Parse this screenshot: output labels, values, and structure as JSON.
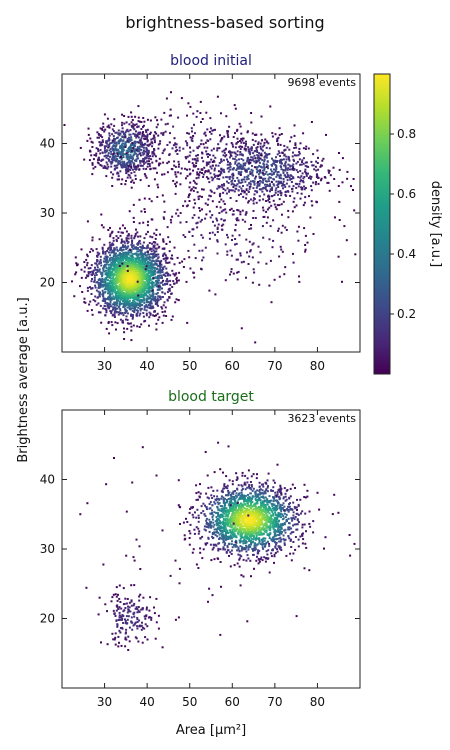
{
  "figure": {
    "title": "brightness-based sorting",
    "xlabel": "Area [µm²]",
    "ylabel": "Brightness average [a.u.]"
  },
  "colorbar": {
    "label": "density [a.u.]",
    "range": [
      0,
      1
    ],
    "ticks": [
      0.2,
      0.4,
      0.6,
      0.8
    ],
    "tick_labels": [
      "0.2",
      "0.4",
      "0.6",
      "0.8"
    ],
    "colormap": "viridis"
  },
  "colors": {
    "title_initial": "#1f1f7a",
    "title_target": "#1a6e1a",
    "viridis": [
      "#440154",
      "#482878",
      "#3e4989",
      "#31688e",
      "#26828e",
      "#1f9e89",
      "#35b779",
      "#6ece58",
      "#b5de2b",
      "#fde725"
    ]
  },
  "chart_data": [
    {
      "type": "scatter",
      "name": "blood initial",
      "title": "blood initial",
      "annotation": "9698 events",
      "xlim": [
        20,
        90
      ],
      "ylim": [
        10,
        50
      ],
      "xticks": [
        30,
        40,
        50,
        60,
        70,
        80
      ],
      "xtick_labels": [
        "30",
        "40",
        "50",
        "60",
        "70",
        "80"
      ],
      "yticks": [
        20,
        30,
        40
      ],
      "ytick_labels": [
        "20",
        "30",
        "40"
      ],
      "clusters": [
        {
          "cx": 36,
          "cy": 20.5,
          "sx": 4.2,
          "sy": 2.6,
          "n": 2600,
          "peak_density": 1.0
        },
        {
          "cx": 35,
          "cy": 39,
          "sx": 3.6,
          "sy": 2.0,
          "n": 650,
          "peak_density": 0.35
        },
        {
          "cx": 66,
          "cy": 36,
          "sx": 8.0,
          "sy": 2.6,
          "n": 850,
          "peak_density": 0.25
        },
        {
          "cx": 50,
          "cy": 40,
          "sx": 10.0,
          "sy": 3.0,
          "n": 250,
          "peak_density": 0.1
        },
        {
          "cx": 58,
          "cy": 27,
          "sx": 12.0,
          "sy": 5.0,
          "n": 320,
          "peak_density": 0.08
        }
      ]
    },
    {
      "type": "scatter",
      "name": "blood target",
      "title": "blood target",
      "annotation": "3623 events",
      "xlim": [
        20,
        90
      ],
      "ylim": [
        10,
        50
      ],
      "xticks": [
        30,
        40,
        50,
        60,
        70,
        80
      ],
      "xtick_labels": [
        "30",
        "40",
        "50",
        "60",
        "70",
        "80"
      ],
      "yticks": [
        20,
        30,
        40
      ],
      "ytick_labels": [
        "20",
        "30",
        "40"
      ],
      "clusters": [
        {
          "cx": 64,
          "cy": 34.2,
          "sx": 5.5,
          "sy": 2.4,
          "n": 1900,
          "peak_density": 1.0
        },
        {
          "cx": 36,
          "cy": 20,
          "sx": 3.2,
          "sy": 2.0,
          "n": 180,
          "peak_density": 0.15
        },
        {
          "cx": 55,
          "cy": 33,
          "sx": 15.0,
          "sy": 7.0,
          "n": 80,
          "peak_density": 0.05
        }
      ]
    }
  ]
}
